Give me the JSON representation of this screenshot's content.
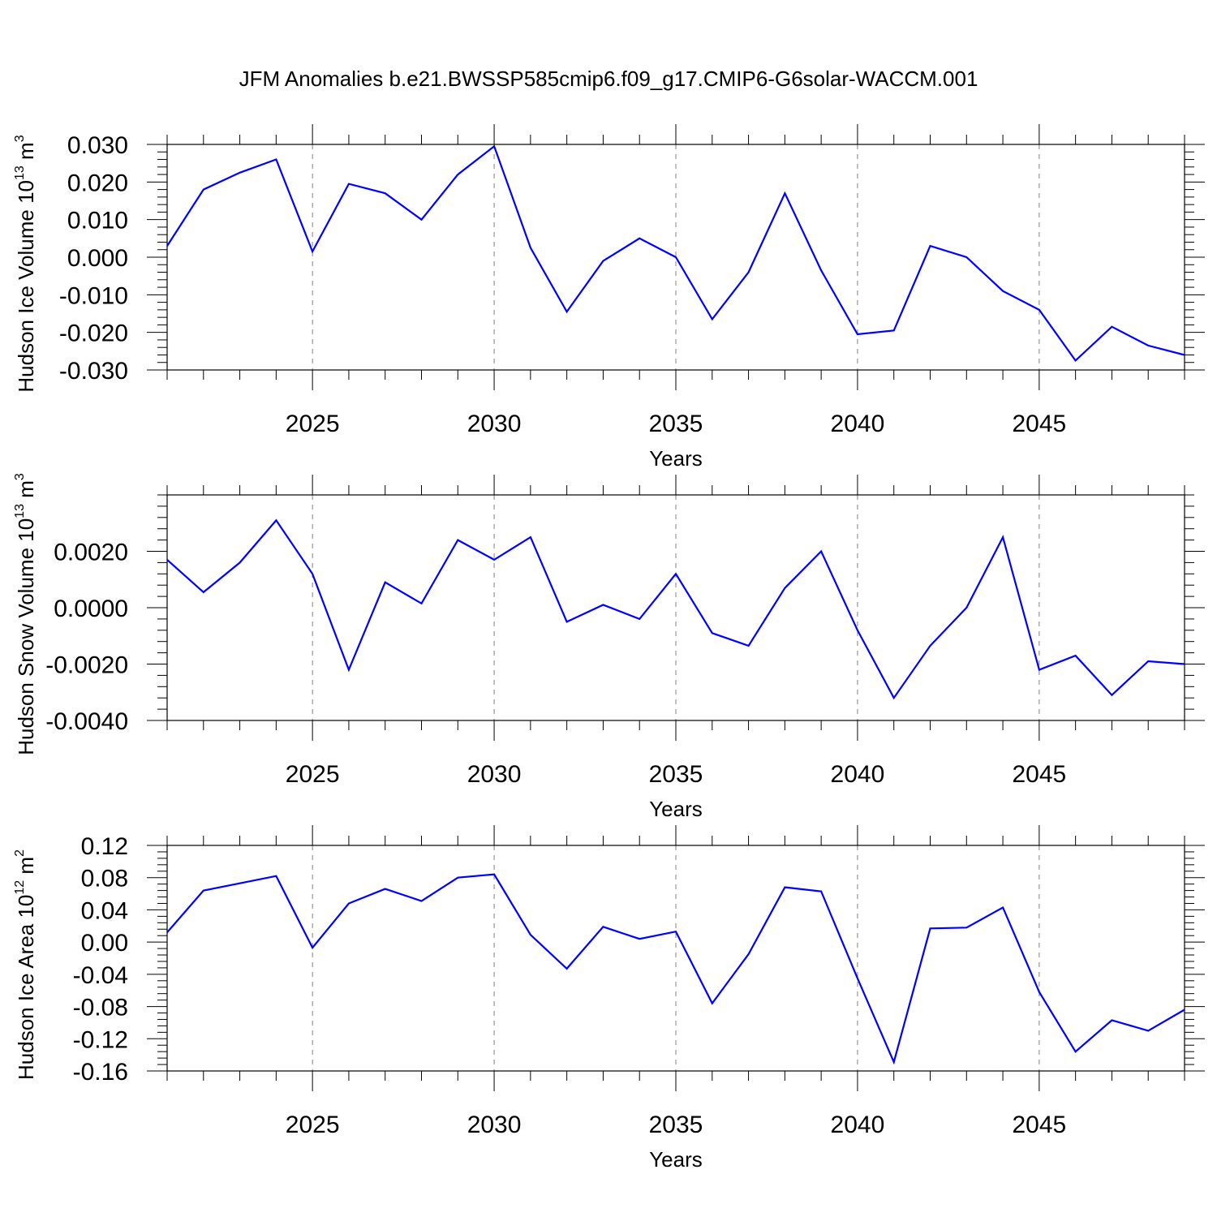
{
  "title": "JFM Anomalies b.e21.BWSSP585cmip6.f09_g17.CMIP6-G6solar-WACCM.001",
  "colors": {
    "line": "#0000ff",
    "axis": "#000000",
    "grid": "#808080"
  },
  "chart_data": [
    {
      "type": "line",
      "ylabel": {
        "text": "Hudson Ice Volume 10",
        "exp": "13",
        "unit": " m",
        "unit_exp": "3"
      },
      "xlabel": "Years",
      "xlim": [
        2021,
        2049
      ],
      "ylim": [
        -0.03,
        0.03
      ],
      "x_ticks": [
        2025,
        2030,
        2035,
        2040,
        2045
      ],
      "y_ticks": [
        -0.03,
        -0.02,
        -0.01,
        0.0,
        0.01,
        0.02,
        0.03
      ],
      "y_tick_labels": [
        "-0.030",
        "-0.020",
        "-0.010",
        "0.000",
        "0.010",
        "0.020",
        "0.030"
      ],
      "x": [
        2021,
        2022,
        2023,
        2024,
        2025,
        2026,
        2027,
        2028,
        2029,
        2030,
        2031,
        2032,
        2033,
        2034,
        2035,
        2036,
        2037,
        2038,
        2039,
        2040,
        2041,
        2042,
        2043,
        2044,
        2045,
        2046,
        2047,
        2048,
        2049
      ],
      "values": [
        0.003,
        0.018,
        0.0225,
        0.026,
        0.0015,
        0.0195,
        0.017,
        0.01,
        0.022,
        0.0295,
        0.0025,
        -0.0145,
        -0.001,
        0.005,
        0.0,
        -0.0165,
        -0.004,
        0.017,
        -0.0035,
        -0.0205,
        -0.0195,
        0.003,
        0.0,
        -0.009,
        -0.014,
        -0.0275,
        -0.0185,
        -0.0235,
        -0.026
      ]
    },
    {
      "type": "line",
      "ylabel": {
        "text": "Hudson Snow Volume 10",
        "exp": "13",
        "unit": " m",
        "unit_exp": "3"
      },
      "xlabel": "Years",
      "xlim": [
        2021,
        2049
      ],
      "ylim": [
        -0.004,
        0.004
      ],
      "x_ticks": [
        2025,
        2030,
        2035,
        2040,
        2045
      ],
      "y_ticks": [
        -0.004,
        -0.002,
        0.0,
        0.002
      ],
      "y_tick_labels": [
        "-0.0040",
        "-0.0020",
        "0.0000",
        "0.0020"
      ],
      "x": [
        2021,
        2022,
        2023,
        2024,
        2025,
        2026,
        2027,
        2028,
        2029,
        2030,
        2031,
        2032,
        2033,
        2034,
        2035,
        2036,
        2037,
        2038,
        2039,
        2040,
        2041,
        2042,
        2043,
        2044,
        2045,
        2046,
        2047,
        2048,
        2049
      ],
      "values": [
        0.0017,
        0.00055,
        0.0016,
        0.0031,
        0.0012,
        -0.0022,
        0.0009,
        0.00015,
        0.0024,
        0.0017,
        0.0025,
        -0.0005,
        0.0001,
        -0.0004,
        0.0012,
        -0.0009,
        -0.00135,
        0.0007,
        0.002,
        -0.0008,
        -0.0032,
        -0.00135,
        0.0,
        0.0025,
        -0.0022,
        -0.0017,
        -0.0031,
        -0.0019,
        -0.002
      ]
    },
    {
      "type": "line",
      "ylabel": {
        "text": "Hudson Ice Area 10",
        "exp": "12",
        "unit": " m",
        "unit_exp": "2"
      },
      "xlabel": "Years",
      "xlim": [
        2021,
        2049
      ],
      "ylim": [
        -0.16,
        0.12
      ],
      "x_ticks": [
        2025,
        2030,
        2035,
        2040,
        2045
      ],
      "y_ticks": [
        -0.16,
        -0.12,
        -0.08,
        -0.04,
        0.0,
        0.04,
        0.08,
        0.12
      ],
      "y_tick_labels": [
        "-0.16",
        "-0.12",
        "-0.08",
        "-0.04",
        "0.00",
        "0.04",
        "0.08",
        "0.12"
      ],
      "x": [
        2021,
        2022,
        2023,
        2024,
        2025,
        2026,
        2027,
        2028,
        2029,
        2030,
        2031,
        2032,
        2033,
        2034,
        2035,
        2036,
        2037,
        2038,
        2039,
        2040,
        2041,
        2042,
        2043,
        2044,
        2045,
        2046,
        2047,
        2048,
        2049
      ],
      "values": [
        0.012,
        0.064,
        0.073,
        0.082,
        -0.007,
        0.048,
        0.066,
        0.051,
        0.08,
        0.084,
        0.009,
        -0.033,
        0.019,
        0.004,
        0.013,
        -0.076,
        -0.015,
        0.068,
        0.063,
        -0.045,
        -0.149,
        0.017,
        0.018,
        0.043,
        -0.062,
        -0.136,
        -0.097,
        -0.11,
        -0.084
      ]
    }
  ]
}
